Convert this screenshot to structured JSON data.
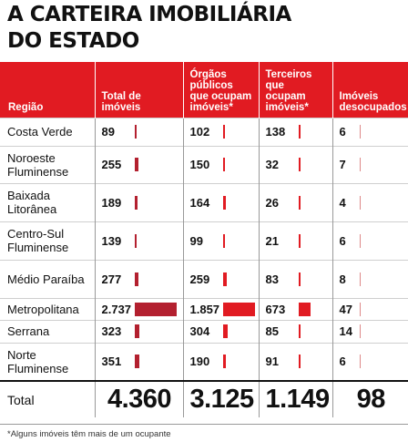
{
  "title_lines": [
    "A CARTEIRA IMOBILIÁRIA",
    "DO ESTADO"
  ],
  "colors": {
    "header_bg": "#e11b22",
    "bar_dark": "#b3202f",
    "bar_red": "#e11b22",
    "text": "#111111"
  },
  "chart_data": {
    "type": "table",
    "title": "A CARTEIRA IMOBILIÁRIA DO ESTADO",
    "columns": [
      "Região",
      "Total de imóveis",
      "Órgãos públicos que ocupam imóveis*",
      "Terceiros que ocupam imóveis*",
      "Imóveis desocupados"
    ],
    "series_colors": [
      "#b3202f",
      "#e11b22",
      "#e11b22",
      "#e11b22"
    ],
    "rows": [
      {
        "region": "Costa Verde",
        "values": [
          89,
          102,
          138,
          6
        ],
        "labels": [
          "89",
          "102",
          "138",
          "6"
        ]
      },
      {
        "region": "Noroeste Fluminense",
        "values": [
          255,
          150,
          32,
          7
        ],
        "labels": [
          "255",
          "150",
          "32",
          "7"
        ]
      },
      {
        "region": "Baixada Litorânea",
        "values": [
          189,
          164,
          26,
          4
        ],
        "labels": [
          "189",
          "164",
          "26",
          "4"
        ]
      },
      {
        "region": "Centro-Sul Fluminense",
        "values": [
          139,
          99,
          21,
          6
        ],
        "labels": [
          "139",
          "99",
          "21",
          "6"
        ]
      },
      {
        "region": "Médio Paraíba",
        "values": [
          277,
          259,
          83,
          8
        ],
        "labels": [
          "277",
          "259",
          "83",
          "8"
        ]
      },
      {
        "region": "Metropolitana",
        "values": [
          2737,
          1857,
          673,
          47
        ],
        "labels": [
          "2.737",
          "1.857",
          "673",
          "47"
        ]
      },
      {
        "region": "Serrana",
        "values": [
          323,
          304,
          85,
          14
        ],
        "labels": [
          "323",
          "304",
          "85",
          "14"
        ]
      },
      {
        "region": "Norte Fluminense",
        "values": [
          351,
          190,
          91,
          6
        ],
        "labels": [
          "351",
          "190",
          "91",
          "6"
        ]
      }
    ],
    "total_label": "Total",
    "totals": [
      4360,
      3125,
      1149,
      98
    ],
    "total_labels": [
      "4.360",
      "3.125",
      "1.149",
      "98"
    ]
  },
  "footnote": "*Alguns imóveis têm mais de um ocupante"
}
